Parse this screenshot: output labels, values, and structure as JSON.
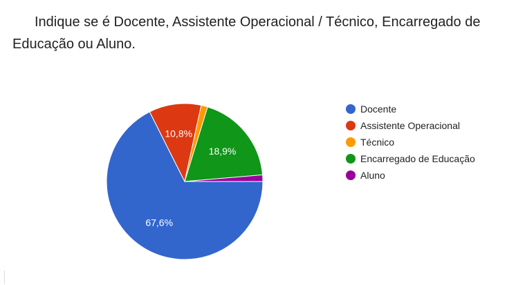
{
  "question": {
    "title": "Indique se é Docente, Assistente Operacional / Técnico, Encarregado de Educação ou Aluno."
  },
  "chart_data": {
    "type": "pie",
    "title": "Indique se é Docente, Assistente Operacional / Técnico, Encarregado de Educação ou Aluno.",
    "categories": [
      "Docente",
      "Assistente Operacional",
      "Técnico",
      "Encarregado de Educação",
      "Aluno"
    ],
    "values": [
      67.6,
      10.8,
      1.35,
      18.9,
      1.35
    ],
    "slice_labels": [
      "67,6%",
      "10,8%",
      "",
      "18,9%",
      ""
    ],
    "colors": [
      "#3366cc",
      "#dc3912",
      "#ff9900",
      "#109618",
      "#990099"
    ],
    "legend_placement": "right"
  }
}
